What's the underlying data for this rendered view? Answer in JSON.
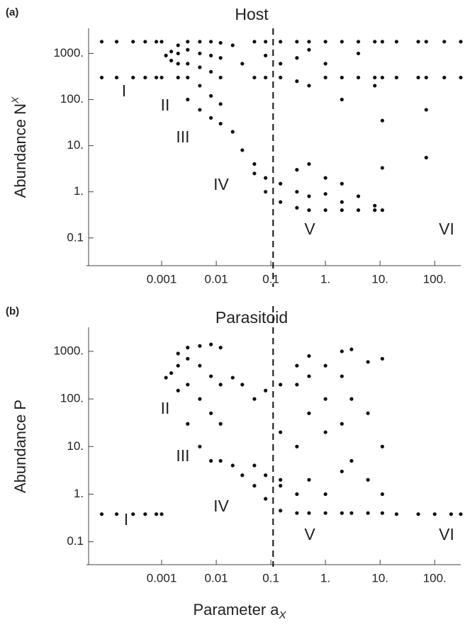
{
  "chart_data": [
    {
      "type": "scatter",
      "panel": "(a)",
      "title": "Host",
      "ylabel": "Abundance N",
      "ylabel_sup": "X",
      "color": "#111111",
      "log_x": true,
      "log_y": true,
      "xlim": [
        4.6e-05,
        300
      ],
      "ylim": [
        0.025,
        3500
      ],
      "xticks": [
        0.001,
        0.01,
        0.1,
        {
          "value": 1,
          "label": "1."
        },
        {
          "value": 10,
          "label": "10."
        },
        {
          "value": 100,
          "label": "100."
        }
      ],
      "yticks": [
        0.1,
        {
          "value": 1,
          "label": "1."
        },
        {
          "value": 10,
          "label": "10."
        },
        {
          "value": 100,
          "label": "100."
        },
        {
          "value": 1000,
          "label": "1000."
        }
      ],
      "vline": 0.11,
      "annotations": [
        "I",
        "II",
        "III",
        "IV",
        "V",
        "VI"
      ],
      "x": [
        8e-05,
        8e-05,
        0.00015,
        0.00015,
        0.0003,
        0.0003,
        0.0005,
        0.0005,
        0.0008,
        0.0008,
        0.001,
        0.001,
        0.0012,
        0.0015,
        0.0015,
        0.002,
        0.002,
        0.002,
        0.002,
        0.003,
        0.003,
        0.003,
        0.003,
        0.003,
        0.005,
        0.005,
        0.005,
        0.005,
        0.005,
        0.008,
        0.008,
        0.008,
        0.008,
        0.008,
        0.012,
        0.012,
        0.012,
        0.012,
        0.012,
        0.02,
        0.02,
        0.03,
        0.03,
        0.05,
        0.05,
        0.05,
        0.05,
        0.08,
        0.08,
        0.08,
        0.08,
        0.08,
        0.15,
        0.15,
        0.15,
        0.15,
        0.15,
        0.3,
        0.3,
        0.3,
        0.3,
        0.3,
        0.3,
        0.5,
        0.5,
        0.5,
        0.5,
        0.5,
        0.5,
        1,
        1,
        1,
        1,
        1,
        1,
        2,
        2,
        2,
        2,
        2,
        2,
        4,
        4,
        4,
        4,
        4,
        8,
        8,
        8,
        8,
        8,
        11,
        11,
        11,
        11,
        11,
        20,
        20,
        50,
        50,
        70,
        70,
        70,
        70,
        150,
        150,
        300,
        300
      ],
      "y": [
        1800,
        300,
        1800,
        300,
        1800,
        300,
        1800,
        300,
        1800,
        300,
        1800,
        300,
        900,
        700,
        1100,
        300,
        600,
        1000,
        1500,
        100,
        300,
        600,
        1200,
        1800,
        60,
        200,
        500,
        1000,
        1800,
        40,
        120,
        400,
        900,
        1800,
        30,
        80,
        300,
        800,
        1700,
        20,
        1500,
        8,
        600,
        2.5,
        4,
        1800,
        300,
        1,
        2,
        1800,
        300,
        900,
        0.6,
        1.5,
        1800,
        300,
        600,
        0.45,
        1,
        3,
        1800,
        250,
        800,
        0.4,
        0.8,
        4,
        1800,
        200,
        1200,
        0.4,
        0.9,
        2,
        1800,
        300,
        600,
        0.4,
        0.6,
        1.5,
        1800,
        300,
        100,
        0.4,
        0.8,
        1800,
        300,
        1000,
        0.4,
        0.5,
        1800,
        300,
        200,
        0.4,
        1800,
        300,
        35,
        3.3,
        1800,
        300,
        1800,
        300,
        1800,
        300,
        60,
        5.5,
        1800,
        300,
        1800,
        300
      ]
    },
    {
      "type": "scatter",
      "panel": "(b)",
      "title": "Parasitoid",
      "ylabel": "Abundance P",
      "xlabel": "Parameter a",
      "xlabel_sub": "X",
      "color": "#111111",
      "log_x": true,
      "log_y": true,
      "xlim": [
        4.6e-05,
        300
      ],
      "ylim": [
        0.033,
        3200
      ],
      "xticks": [
        0.001,
        0.01,
        0.1,
        {
          "value": 1,
          "label": "1."
        },
        {
          "value": 10,
          "label": "10."
        },
        {
          "value": 100,
          "label": "100."
        }
      ],
      "yticks": [
        0.1,
        {
          "value": 1,
          "label": "1."
        },
        {
          "value": 10,
          "label": "10."
        },
        {
          "value": 100,
          "label": "100."
        },
        {
          "value": 1000,
          "label": "1000."
        }
      ],
      "vline": 0.11,
      "annotations": [
        "I",
        "II",
        "III",
        "IV",
        "V",
        "VI"
      ],
      "x": [
        8e-05,
        0.00015,
        0.0003,
        0.0005,
        0.0008,
        0.001,
        0.0012,
        0.0015,
        0.002,
        0.002,
        0.002,
        0.003,
        0.003,
        0.003,
        0.003,
        0.005,
        0.005,
        0.005,
        0.005,
        0.008,
        0.008,
        0.008,
        0.008,
        0.012,
        0.012,
        0.012,
        0.012,
        0.02,
        0.02,
        0.03,
        0.03,
        0.05,
        0.05,
        0.05,
        0.08,
        0.08,
        0.08,
        0.15,
        0.15,
        0.15,
        0.15,
        0.15,
        0.3,
        0.3,
        0.3,
        0.3,
        0.3,
        0.5,
        0.5,
        0.5,
        0.5,
        0.5,
        1,
        1,
        1,
        1,
        1,
        2,
        2,
        2,
        2,
        2,
        3,
        3,
        3,
        3,
        6,
        6,
        6,
        6,
        11,
        11,
        11,
        11,
        20,
        50,
        100,
        200,
        300
      ],
      "y": [
        0.38,
        0.38,
        0.38,
        0.38,
        0.38,
        0.38,
        280,
        350,
        150,
        500,
        900,
        30,
        200,
        700,
        1200,
        10,
        100,
        500,
        1300,
        5,
        50,
        300,
        1400,
        5,
        30,
        200,
        1200,
        280,
        4,
        200,
        2.5,
        100,
        1.5,
        4,
        150,
        0.8,
        2.5,
        0.45,
        1.5,
        20,
        200,
        2,
        0.4,
        1,
        10,
        200,
        500,
        0.4,
        2,
        50,
        300,
        800,
        0.4,
        1,
        20,
        100,
        500,
        0.4,
        3,
        30,
        300,
        1000,
        0.4,
        5,
        100,
        1100,
        0.4,
        2,
        50,
        600,
        0.4,
        1,
        10,
        700,
        0.38,
        0.38,
        0.38,
        0.38,
        0.38
      ]
    }
  ]
}
